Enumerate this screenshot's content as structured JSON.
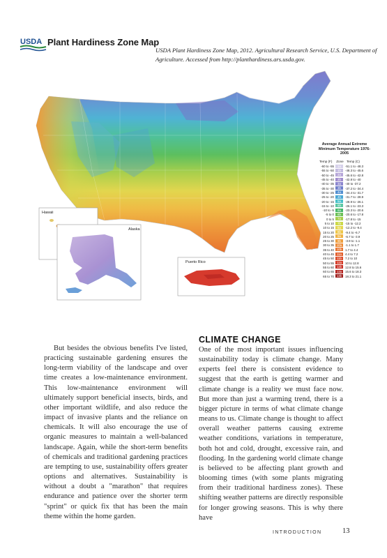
{
  "map": {
    "title": "Plant Hardiness Zone Map",
    "logo_text": "USDA",
    "credit": "USDA Plant Hardiness Zone Map, 2012. Agricultural Research Service, U.S. Department of Agriculture. Accessed from http://planthardiness.ars.usda.gov.",
    "inset_labels": {
      "hawaii": "Hawaii",
      "alaska": "Alaska",
      "puerto_rico": "Puerto Rico"
    },
    "legend": {
      "title": "Average Annual Extreme Minimum Temperature 1976-2005",
      "col_f": "Temp (F)",
      "col_zone": "Zone",
      "col_c": "Temp (C)",
      "rows": [
        {
          "f": "-60 to -55",
          "zone": "1a",
          "c": "-51.1 to -48.3",
          "color": "#d6d1ea"
        },
        {
          "f": "-55 to -50",
          "zone": "1b",
          "c": "-48.3 to -45.6",
          "color": "#c3bbe0"
        },
        {
          "f": "-50 to -45",
          "zone": "2a",
          "c": "-45.6 to -42.8",
          "color": "#b6a6d8"
        },
        {
          "f": "-45 to -40",
          "zone": "2b",
          "c": "-42.8 to -40",
          "color": "#a18ccd"
        },
        {
          "f": "-40 to -35",
          "zone": "3a",
          "c": "-40 to -37.2",
          "color": "#8d86cf"
        },
        {
          "f": "-35 to -30",
          "zone": "3b",
          "c": "-37.2 to -34.4",
          "color": "#6f7ecb"
        },
        {
          "f": "-30 to -25",
          "zone": "4a",
          "c": "-34.4 to -31.7",
          "color": "#5590d1"
        },
        {
          "f": "-25 to -20",
          "zone": "4b",
          "c": "-31.7 to -28.9",
          "color": "#4aa8d6"
        },
        {
          "f": "-20 to -15",
          "zone": "5a",
          "c": "-28.9 to -26.1",
          "color": "#48c0c9"
        },
        {
          "f": "-15 to -10",
          "zone": "5b",
          "c": "-26.1 to -23.3",
          "color": "#5cc7a3"
        },
        {
          "f": "-10 to -5",
          "zone": "6a",
          "c": "-23.3 to -20.6",
          "color": "#48b76a"
        },
        {
          "f": "-5 to 0",
          "zone": "6b",
          "c": "-20.6 to -17.8",
          "color": "#6cc157"
        },
        {
          "f": "0 to 5",
          "zone": "7a",
          "c": "-17.8 to -15",
          "color": "#a7cf4c"
        },
        {
          "f": "5 to 10",
          "zone": "7b",
          "c": "-15 to -12.2",
          "color": "#cbd947"
        },
        {
          "f": "10 to 15",
          "zone": "8a",
          "c": "-12.2 to -9.4",
          "color": "#e4d74e"
        },
        {
          "f": "15 to 20",
          "zone": "8b",
          "c": "-9.4 to -6.7",
          "color": "#eec74a"
        },
        {
          "f": "20 to 25",
          "zone": "9a",
          "c": "-6.7 to -3.9",
          "color": "#f0b443"
        },
        {
          "f": "25 to 30",
          "zone": "9b",
          "c": "-3.9 to -1.1",
          "color": "#ef9e3c"
        },
        {
          "f": "30 to 35",
          "zone": "10a",
          "c": "-1.1 to 1.7",
          "color": "#ec8a36"
        },
        {
          "f": "35 to 40",
          "zone": "10b",
          "c": "1.7 to 4.4",
          "color": "#e87530"
        },
        {
          "f": "40 to 45",
          "zone": "11a",
          "c": "4.4 to 7.2",
          "color": "#e25f2c"
        },
        {
          "f": "45 to 50",
          "zone": "11b",
          "c": "7.2 to 10",
          "color": "#dc4b29"
        },
        {
          "f": "50 to 55",
          "zone": "12a",
          "c": "10 to 12.8",
          "color": "#d43a26"
        },
        {
          "f": "55 to 60",
          "zone": "12b",
          "c": "12.8 to 15.6",
          "color": "#c72e24"
        },
        {
          "f": "60 to 65",
          "zone": "13a",
          "c": "15.6 to 18.3",
          "color": "#b52621"
        },
        {
          "f": "65 to 70",
          "zone": "13b",
          "c": "18.3 to 21.1",
          "color": "#9e1f1d"
        }
      ]
    }
  },
  "left_column": {
    "text": "But besides the obvious benefits I've listed, practicing sustainable gardening ensures the long-term viability of the landscape and over time creates a low-maintenance environment. This low-maintenance environment will ultimately support beneficial insects, birds, and other important wildlife, and also reduce the impact of invasive plants and the reliance on chemicals. It will also encourage the use of organic measures to maintain a well-balanced landscape. Again, while the short-term benefits of chemicals and traditional gardening practices are tempting to use, sustainability offers greater options and alternatives. Sustainability is without a doubt a \"marathon\" that requires endurance and patience over the shorter term \"sprint\" or quick fix that has been the main theme within the home garden."
  },
  "right_column": {
    "heading": "CLIMATE CHANGE",
    "text": "One of the most important issues influencing sustainability today is climate change. Many experts feel there is consistent evidence to suggest that the earth is getting warmer and climate change is a reality we must face now. But more than just a warming trend, there is a bigger picture in terms of what climate change means to us. Climate change is thought to affect overall weather patterns causing extreme weather conditions, variations in temperature, both hot and cold, drought, excessive rain, and flooding. In the gardening world climate change is believed to be affecting plant growth and blooming times (with some plants migrating from their traditional hardiness zones). These shifting weather patterns are directly responsible for longer growing seasons. This is why there have"
  },
  "footer": {
    "section": "INTRODUCTION",
    "page": "13"
  }
}
